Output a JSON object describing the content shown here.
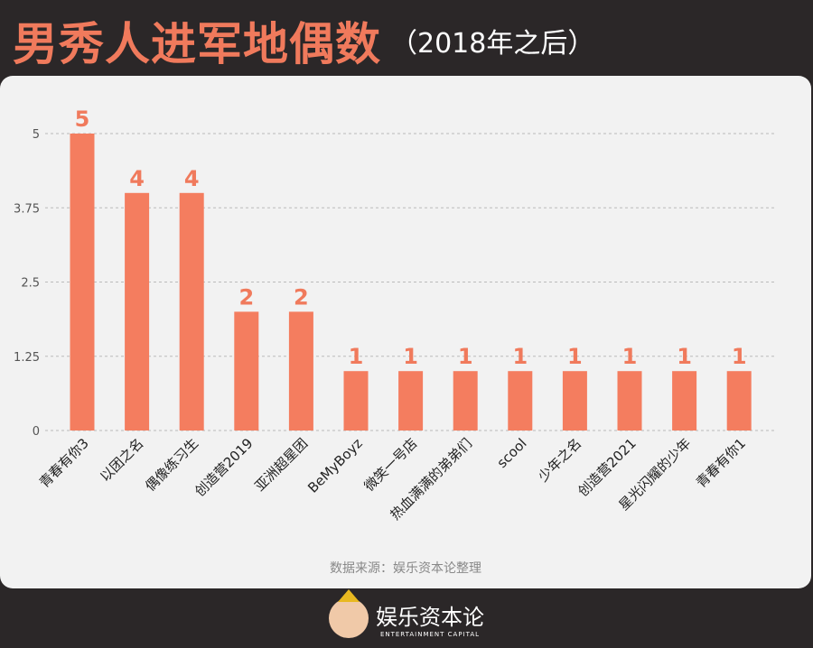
{
  "title": {
    "main": "男秀人进军地偶数",
    "sub": "（2018年之后）"
  },
  "source_note": "数据来源：娱乐资本论整理",
  "logo": {
    "cn": "娱乐资本论",
    "en": "ENTERTAINMENT CAPITAL"
  },
  "colors": {
    "bar": "#f47d5f",
    "label": "#f07a5c",
    "background": "#2b2728",
    "panel": "#f2f2f2"
  },
  "chart_data": {
    "type": "bar",
    "title": "男秀人进军地偶数（2018年之后）",
    "xlabel": "",
    "ylabel": "",
    "ylim": [
      0,
      5
    ],
    "yticks": [
      "0",
      "1.25",
      "2.5",
      "3.75",
      "5"
    ],
    "grid": true,
    "categories": [
      "青春有你3",
      "以团之名",
      "偶像练习生",
      "创造营2019",
      "亚洲超星团",
      "BeMyBoyz",
      "微笑一号店",
      "热血满满的弟弟们",
      "scool",
      "少年之名",
      "创造营2021",
      "星光闪耀的少年",
      "青春有你1"
    ],
    "values": [
      5,
      4,
      4,
      2,
      2,
      1,
      1,
      1,
      1,
      1,
      1,
      1,
      1
    ]
  }
}
